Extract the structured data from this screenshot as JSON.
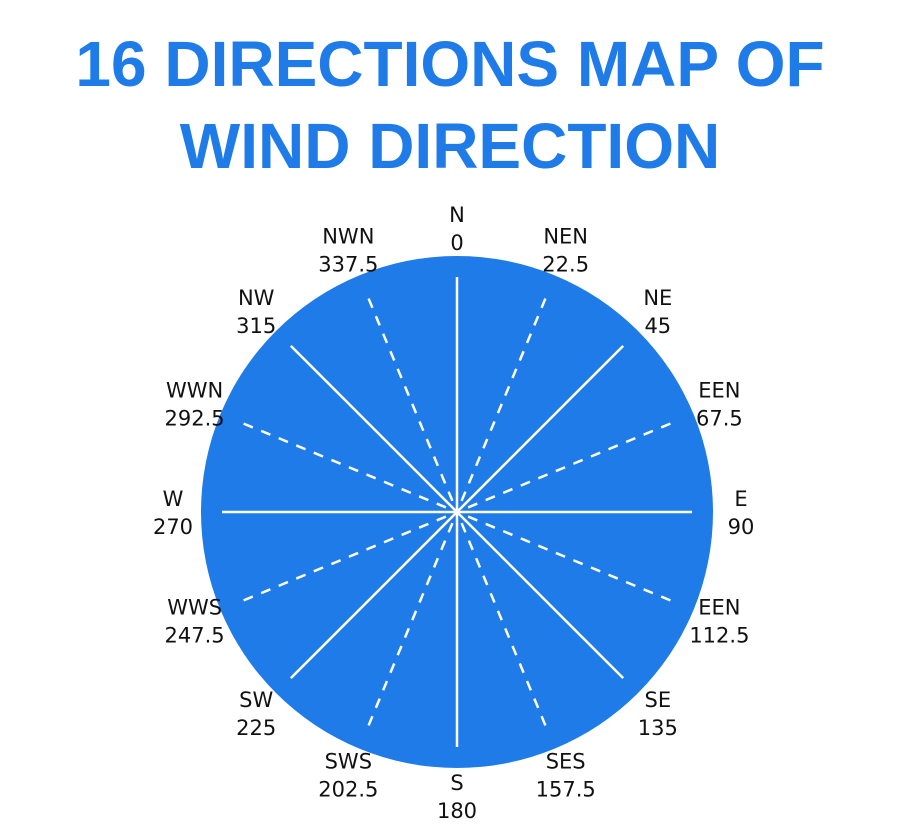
{
  "title": {
    "line1": "16 DIRECTIONS MAP OF",
    "line2": "WIND DIRECTION"
  },
  "colors": {
    "accent": "#1f7be8",
    "disc": "#1f7be8",
    "lines": "#ffffff",
    "text": "#111111"
  },
  "directions": [
    {
      "name": "N",
      "degrees": "0",
      "angle": 0,
      "line": "solid"
    },
    {
      "name": "NEN",
      "degrees": "22.5",
      "angle": 22.5,
      "line": "dashed"
    },
    {
      "name": "NE",
      "degrees": "45",
      "angle": 45,
      "line": "solid"
    },
    {
      "name": "EEN",
      "degrees": "67.5",
      "angle": 67.5,
      "line": "dashed"
    },
    {
      "name": "E",
      "degrees": "90",
      "angle": 90,
      "line": "solid"
    },
    {
      "name": "EEN",
      "degrees": "112.5",
      "angle": 112.5,
      "line": "dashed"
    },
    {
      "name": "SE",
      "degrees": "135",
      "angle": 135,
      "line": "solid"
    },
    {
      "name": "SES",
      "degrees": "157.5",
      "angle": 157.5,
      "line": "dashed"
    },
    {
      "name": "S",
      "degrees": "180",
      "angle": 180,
      "line": "solid"
    },
    {
      "name": "SWS",
      "degrees": "202.5",
      "angle": 202.5,
      "line": "dashed"
    },
    {
      "name": "SW",
      "degrees": "225",
      "angle": 225,
      "line": "solid"
    },
    {
      "name": "WWS",
      "degrees": "247.5",
      "angle": 247.5,
      "line": "dashed"
    },
    {
      "name": "W",
      "degrees": "270",
      "angle": 270,
      "line": "solid"
    },
    {
      "name": "WWN",
      "degrees": "292.5",
      "angle": 292.5,
      "line": "dashed"
    },
    {
      "name": "NW",
      "degrees": "315",
      "angle": 315,
      "line": "solid"
    },
    {
      "name": "NWN",
      "degrees": "337.5",
      "angle": 337.5,
      "line": "dashed"
    }
  ]
}
